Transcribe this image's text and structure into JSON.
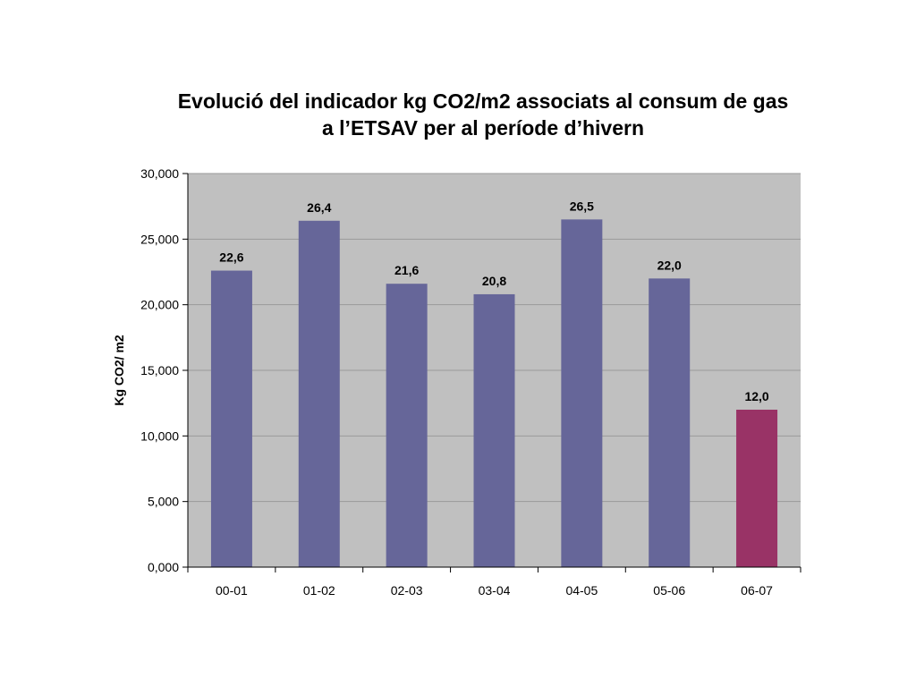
{
  "chart_data": {
    "type": "bar",
    "title_lines": [
      "Evolució del indicador kg CO2/m2 associats al consum de gas",
      "a l’ETSAV per al període d’hivern"
    ],
    "xlabel": "",
    "ylabel": "Kg CO2/ m2",
    "categories": [
      "00-01",
      "01-02",
      "02-03",
      "03-04",
      "04-05",
      "05-06",
      "06-07"
    ],
    "values": [
      22.6,
      26.4,
      21.6,
      20.8,
      26.5,
      22.0,
      12.0
    ],
    "data_labels": [
      "22,6",
      "26,4",
      "21,6",
      "20,8",
      "26,5",
      "22,0",
      "12,0"
    ],
    "ylim": [
      0,
      30
    ],
    "yticks": [
      0,
      5,
      10,
      15,
      20,
      25,
      30
    ],
    "ytick_labels": [
      "0,000",
      "5,000",
      "10,000",
      "15,000",
      "20,000",
      "25,000",
      "30,000"
    ],
    "grid": true,
    "legend": "none",
    "colors": {
      "bar": "#666699",
      "highlight_bar": "#993366",
      "plot_background": "#c0c0c0",
      "gridline": "#9a9a9a"
    },
    "highlight_index": 6
  }
}
